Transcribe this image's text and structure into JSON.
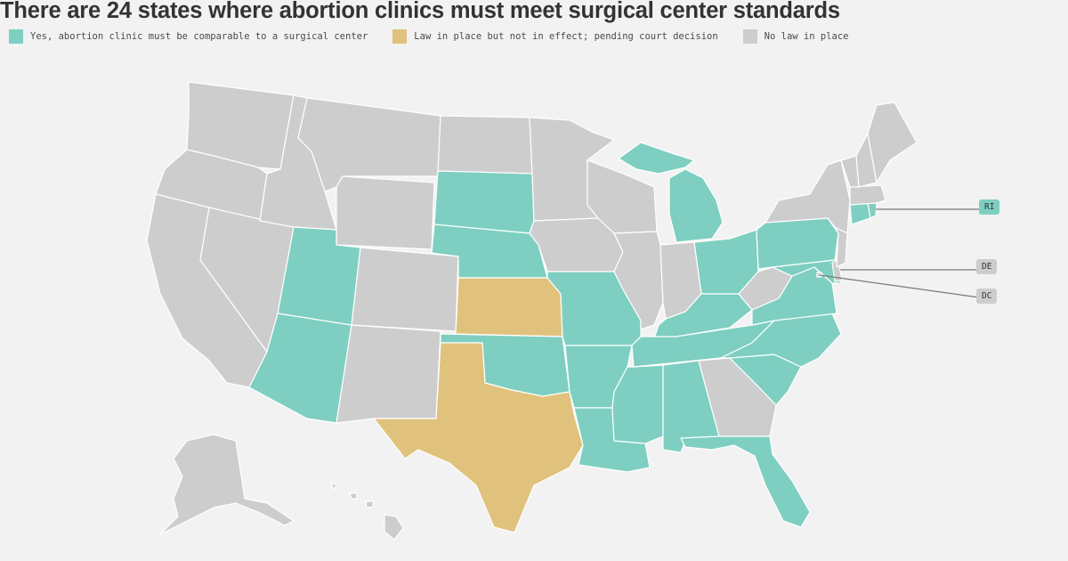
{
  "title": "There are 24 states where abortion clinics must meet surgical center standards",
  "colors": {
    "yes": "#7ecfc1",
    "pending": "#e0c27d",
    "none": "#cdcdcd"
  },
  "legend": [
    {
      "key": "yes",
      "label": "Yes, abortion clinic must be comparable to a surgical center",
      "color": "#7ecfc1"
    },
    {
      "key": "pending",
      "label": "Law in place but not in effect; pending court decision",
      "color": "#e0c27d"
    },
    {
      "key": "none",
      "label": "No law in place",
      "color": "#cdcdcd"
    }
  ],
  "callouts": [
    {
      "label": "RI",
      "status": "yes"
    },
    {
      "label": "DE",
      "status": "none"
    },
    {
      "label": "DC",
      "status": "none"
    }
  ],
  "states": {
    "WA": "none",
    "OR": "none",
    "CA": "none",
    "NV": "none",
    "ID": "none",
    "MT": "none",
    "WY": "none",
    "UT": "yes",
    "AZ": "yes",
    "CO": "none",
    "NM": "none",
    "ND": "none",
    "SD": "yes",
    "NE": "yes",
    "KS": "pending",
    "OK": "yes",
    "TX": "pending",
    "MN": "none",
    "IA": "none",
    "MO": "yes",
    "AR": "yes",
    "LA": "yes",
    "WI": "none",
    "IL": "none",
    "MI": "yes",
    "IN": "none",
    "OH": "yes",
    "KY": "yes",
    "TN": "yes",
    "MS": "yes",
    "AL": "yes",
    "GA": "none",
    "FL": "yes",
    "SC": "yes",
    "NC": "yes",
    "VA": "yes",
    "WV": "none",
    "PA": "yes",
    "NY": "none",
    "VT": "none",
    "NH": "none",
    "ME": "none",
    "MA": "none",
    "RI": "yes",
    "CT": "yes",
    "NJ": "none",
    "DE": "none",
    "MD": "yes",
    "DC": "none",
    "AK": "none",
    "HI": "none"
  }
}
